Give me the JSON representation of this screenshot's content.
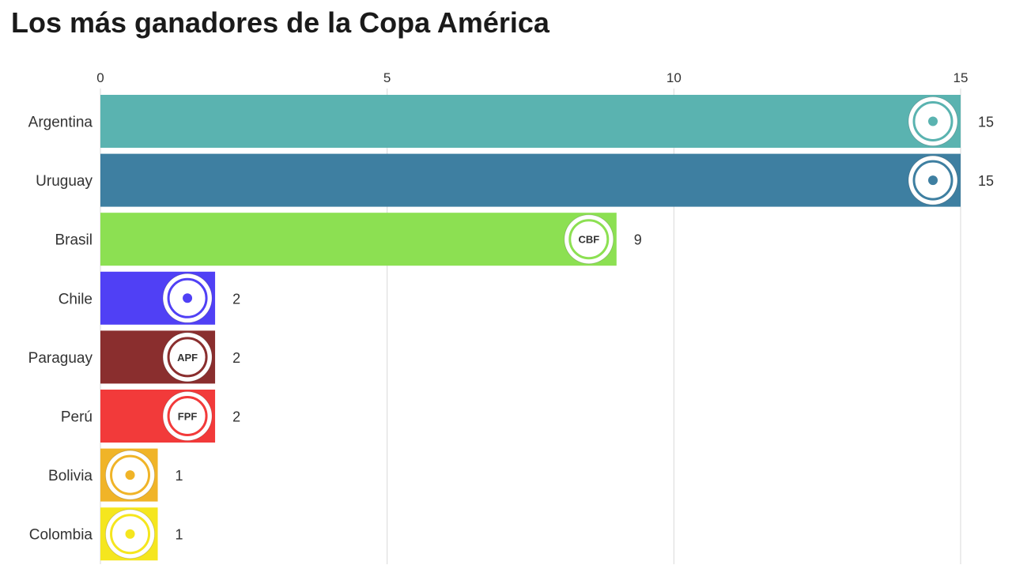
{
  "chart_data": {
    "type": "bar",
    "orientation": "horizontal",
    "title": "Los más ganadores de la Copa América",
    "xlim": [
      0,
      15
    ],
    "xticks": [
      0,
      5,
      10,
      15
    ],
    "grid": true,
    "categories": [
      "Argentina",
      "Uruguay",
      "Brasil",
      "Chile",
      "Paraguay",
      "Perú",
      "Bolivia",
      "Colombia"
    ],
    "values": [
      15,
      15,
      9,
      2,
      2,
      2,
      1,
      1
    ],
    "colors": [
      "#5ab3b0",
      "#3e7fa1",
      "#8ce052",
      "#5040f5",
      "#8a2e2e",
      "#f23a3a",
      "#f0b428",
      "#f5e61e"
    ],
    "badge_icons": [
      "afa-crest-icon",
      "auf-crest-icon",
      "cbf-crest-icon",
      "ffch-crest-icon",
      "apf-crest-icon",
      "fpf-crest-icon",
      "fbf-crest-icon",
      "fcf-crest-icon"
    ],
    "badge_texts": [
      "",
      "",
      "CBF",
      "",
      "APF",
      "FPF",
      "",
      ""
    ]
  }
}
